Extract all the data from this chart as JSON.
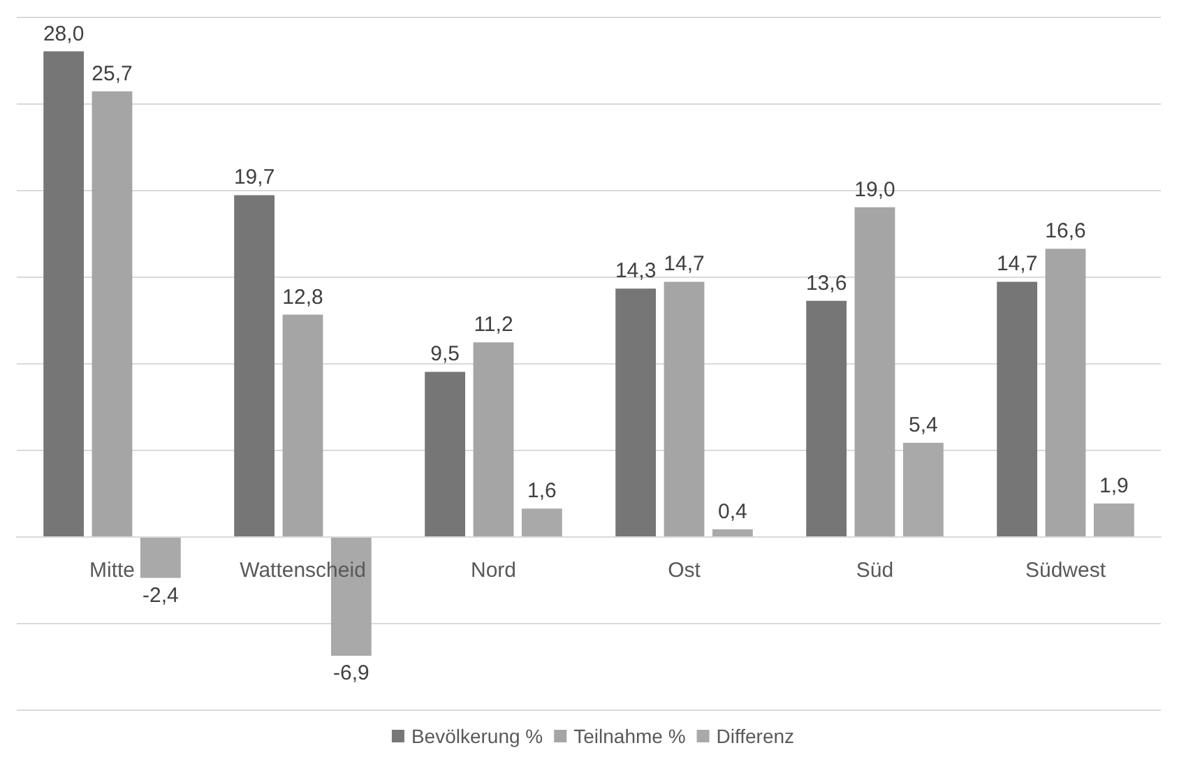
{
  "chart_data": {
    "type": "bar",
    "categories": [
      "Mitte",
      "Wattenscheid",
      "Nord",
      "Ost",
      "Süd",
      "Südwest"
    ],
    "series": [
      {
        "name": "Bevölkerung %",
        "color": "#767676",
        "values": [
          28.0,
          19.7,
          9.5,
          14.3,
          13.6,
          14.7
        ],
        "value_labels": [
          "28,0",
          "19,7",
          "9,5",
          "14,3",
          "13,6",
          "14,7"
        ]
      },
      {
        "name": "Teilnahme %",
        "color": "#a5a5a5",
        "values": [
          25.7,
          12.8,
          11.2,
          14.7,
          19.0,
          16.6
        ],
        "value_labels": [
          "25,7",
          "12,8",
          "11,2",
          "14,7",
          "19,0",
          "16,6"
        ]
      },
      {
        "name": "Differenz",
        "color": "#a9a9a9",
        "values": [
          -2.4,
          -6.9,
          1.6,
          0.4,
          5.4,
          1.9
        ],
        "value_labels": [
          "-2,4",
          "-6,9",
          "1,6",
          "0,4",
          "5,4",
          "1,9"
        ]
      }
    ],
    "ylim": [
      -10,
      30
    ],
    "yticks": [
      {
        "value": -10,
        "label": null
      },
      {
        "value": -5,
        "label": null
      },
      {
        "value": 0,
        "label": null
      },
      {
        "value": 5,
        "label": null
      },
      {
        "value": 10,
        "label": null
      },
      {
        "value": 15,
        "label": null
      },
      {
        "value": 20,
        "label": null
      },
      {
        "value": 25,
        "label": null
      },
      {
        "value": 30,
        "label": null
      }
    ],
    "grid": "y",
    "legend": "bottom",
    "tick_labels": "x"
  }
}
